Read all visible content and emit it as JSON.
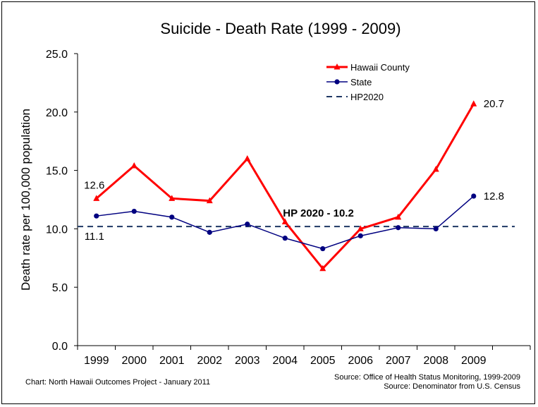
{
  "chart_data": {
    "type": "line",
    "title": "Suicide - Death Rate (1999 - 2009)",
    "ylabel": "Death rate per 100,000 population",
    "xlabel": "",
    "categories": [
      "1999",
      "2000",
      "2001",
      "2002",
      "2003",
      "2004",
      "2005",
      "2006",
      "2007",
      "2008",
      "2009"
    ],
    "ylim": [
      0,
      25
    ],
    "yticks": [
      "0.0",
      "5.0",
      "10.0",
      "15.0",
      "20.0",
      "25.0"
    ],
    "ytick_values": [
      0,
      5,
      10,
      15,
      20,
      25
    ],
    "grid": false,
    "legend_position": "top-right",
    "series": [
      {
        "name": "Hawaii County",
        "color": "#ff0000",
        "marker": "triangle",
        "values": [
          12.6,
          15.4,
          12.6,
          12.4,
          16.0,
          10.6,
          6.6,
          10.0,
          11.0,
          15.1,
          20.7
        ]
      },
      {
        "name": "State",
        "color": "#000080",
        "marker": "circle",
        "values": [
          11.1,
          11.5,
          11.0,
          9.7,
          10.4,
          9.2,
          8.3,
          9.4,
          10.1,
          10.0,
          12.8
        ]
      }
    ],
    "reference_line": {
      "name": "HP2020",
      "value": 10.2,
      "color": "#1f3864",
      "style": "dashed"
    },
    "annotations": [
      {
        "text": "12.6",
        "series": "Hawaii County",
        "category": "1999"
      },
      {
        "text": "11.1",
        "series": "State",
        "category": "1999"
      },
      {
        "text": "20.7",
        "series": "Hawaii County",
        "category": "2009"
      },
      {
        "text": "12.8",
        "series": "State",
        "category": "2009"
      },
      {
        "text": "HP 2020 - 10.2",
        "series": "HP2020",
        "category": "2004"
      }
    ]
  },
  "footer": {
    "left": "Chart:  North Hawaii Outcomes Project - January 2011",
    "right_line1": "Source:  Office of Health Status Monitoring, 1999-2009",
    "right_line2": "Source:  Denominator  from U.S. Census"
  }
}
